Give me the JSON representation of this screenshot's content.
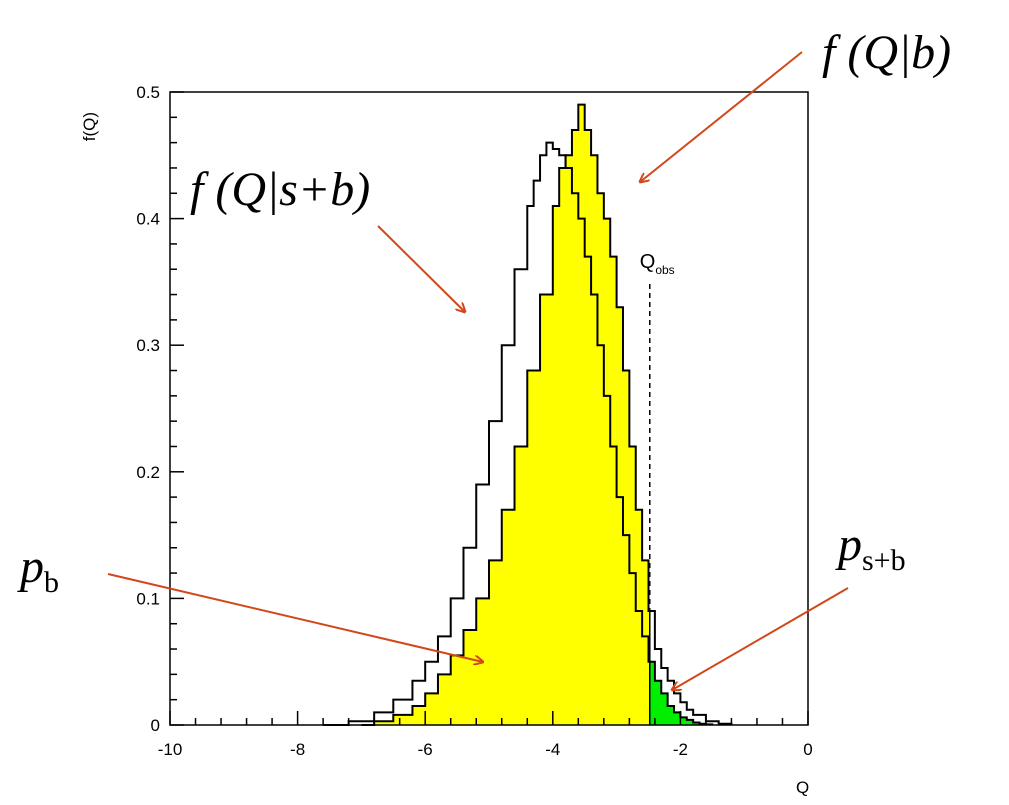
{
  "chart_data": {
    "type": "area",
    "title": "",
    "xlabel": "Q",
    "ylabel": "f(Q)",
    "xlim": [
      -10,
      0
    ],
    "ylim": [
      0,
      0.5
    ],
    "x_ticks": [
      -10,
      -8,
      -6,
      -4,
      -2,
      0
    ],
    "y_ticks": [
      0,
      0.1,
      0.2,
      0.3,
      0.4,
      0.5
    ],
    "x_tick_labels": [
      "-10",
      "-8",
      "-6",
      "-4",
      "-2",
      "0"
    ],
    "y_tick_labels": [
      "0",
      "0.1",
      "0.2",
      "0.3",
      "0.4",
      "0.5"
    ],
    "grid": false,
    "q_obs": -2.48,
    "q_obs_label": "Q",
    "q_obs_sub": "obs",
    "series": [
      {
        "x": [
          -7.6,
          -7.2,
          -6.8,
          -6.5,
          -6.2,
          -6.0,
          -5.8,
          -5.6,
          -5.4,
          -5.2,
          -5.0,
          -4.8,
          -4.6,
          -4.4,
          -4.3,
          -4.2,
          -4.1,
          -4.0,
          -3.9,
          -3.8,
          -3.7,
          -3.6,
          -3.5,
          -3.4,
          -3.3,
          -3.2,
          -3.1,
          -3.0,
          -2.9,
          -2.8,
          -2.7,
          -2.6,
          -2.5,
          -2.4,
          -2.3,
          -2.2,
          -2.1,
          -2.0,
          -1.9,
          -1.8,
          -1.7,
          -1.6,
          -1.5
        ],
        "y": [
          0.0,
          0.003,
          0.01,
          0.02,
          0.035,
          0.05,
          0.07,
          0.1,
          0.14,
          0.19,
          0.24,
          0.3,
          0.36,
          0.41,
          0.43,
          0.45,
          0.46,
          0.455,
          0.45,
          0.44,
          0.42,
          0.4,
          0.37,
          0.34,
          0.3,
          0.26,
          0.22,
          0.18,
          0.15,
          0.12,
          0.09,
          0.07,
          0.05,
          0.035,
          0.025,
          0.015,
          0.01,
          0.006,
          0.004,
          0.002,
          0.001,
          0.0005,
          0.0
        ]
      },
      {
        "x": [
          -7.0,
          -6.8,
          -6.5,
          -6.2,
          -6.0,
          -5.8,
          -5.6,
          -5.4,
          -5.2,
          -5.0,
          -4.8,
          -4.6,
          -4.4,
          -4.2,
          -4.0,
          -3.9,
          -3.8,
          -3.7,
          -3.6,
          -3.5,
          -3.4,
          -3.3,
          -3.2,
          -3.1,
          -3.0,
          -2.9,
          -2.8,
          -2.7,
          -2.6,
          -2.5,
          -2.4,
          -2.3,
          -2.2,
          -2.1,
          -2.0,
          -1.9,
          -1.8,
          -1.6,
          -1.4,
          -1.2
        ],
        "y": [
          0.0,
          0.003,
          0.008,
          0.015,
          0.025,
          0.04,
          0.055,
          0.075,
          0.1,
          0.13,
          0.17,
          0.22,
          0.28,
          0.34,
          0.41,
          0.44,
          0.45,
          0.47,
          0.49,
          0.47,
          0.45,
          0.42,
          0.4,
          0.37,
          0.33,
          0.28,
          0.22,
          0.17,
          0.13,
          0.09,
          0.06,
          0.045,
          0.035,
          0.025,
          0.018,
          0.012,
          0.008,
          0.003,
          0.001,
          0.0
        ]
      }
    ],
    "colors": {
      "fill_main": "#ffff00",
      "fill_tail": "#00ee00",
      "line": "#000000",
      "arrow": "#d2481a"
    }
  },
  "annotations": {
    "f_b": "f (Q|b)",
    "f_sb": "f (Q|s+b)",
    "p_b": "p",
    "p_b_sub": "b",
    "p_sb": "p",
    "p_sb_sub": "s+b"
  }
}
